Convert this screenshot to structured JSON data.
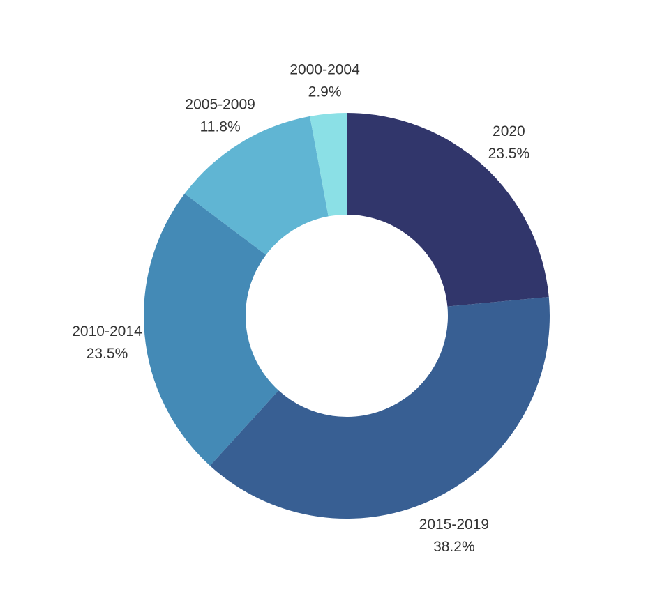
{
  "chart_data": {
    "type": "pie",
    "variant": "donut",
    "categories": [
      "2020",
      "2015-2019",
      "2010-2014",
      "2005-2009",
      "2000-2004"
    ],
    "values": [
      23.5,
      38.2,
      23.5,
      11.8,
      2.9
    ],
    "value_labels": [
      "23.5%",
      "38.2%",
      "23.5%",
      "11.8%",
      "2.9%"
    ],
    "colors": [
      "#31366b",
      "#385f93",
      "#448ab6",
      "#60b5d3",
      "#8be0e6"
    ],
    "legend": "none",
    "title": ""
  }
}
